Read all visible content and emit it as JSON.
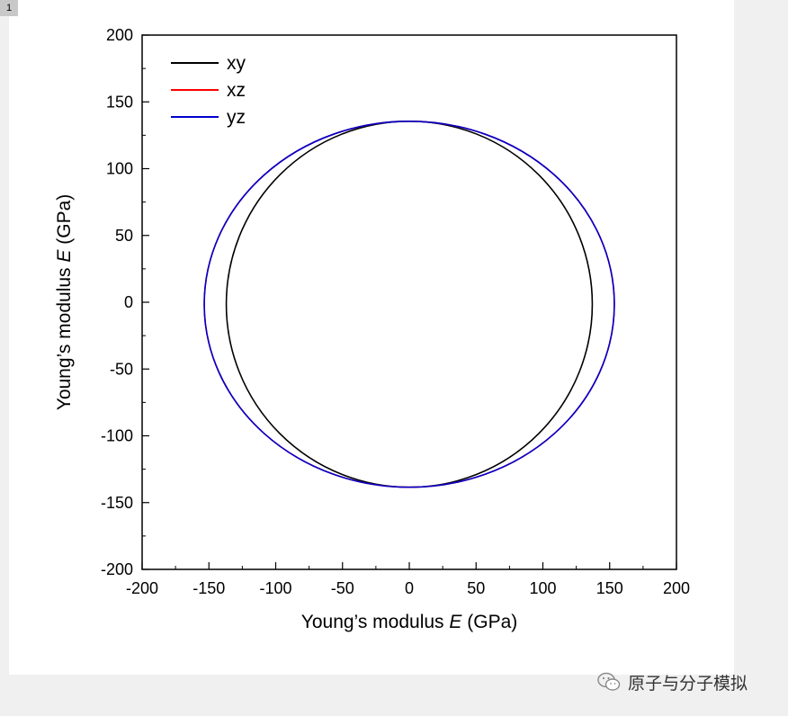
{
  "page": {
    "tab_label": "1",
    "watermark": "原子与分子模拟"
  },
  "chart_data": {
    "type": "line",
    "title": "",
    "xlabel": "Young's modulus E (GPa)",
    "ylabel": "Young's modulus E (GPa)",
    "xlabel_parts": {
      "prefix": "Young’s modulus ",
      "symbol": "E",
      "suffix": " (GPa)"
    },
    "ylabel_parts": {
      "prefix": "Young’s modulus ",
      "symbol": "E",
      "suffix": " (GPa)"
    },
    "xlim": [
      -200,
      200
    ],
    "ylim": [
      -200,
      200
    ],
    "xticks": [
      "-200",
      "-150",
      "-100",
      "-50",
      "0",
      "50",
      "100",
      "150",
      "200"
    ],
    "yticks": [
      "200",
      "150",
      "100",
      "50",
      "0",
      "-50",
      "-100",
      "-150",
      "-200"
    ],
    "grid": false,
    "legend_position": "top-left",
    "plot_kind": "polar",
    "series": [
      {
        "name": "xy",
        "color": "#000000",
        "rx": 137,
        "ry": 137,
        "cx": 0,
        "cy": -1.5
      },
      {
        "name": "xz",
        "color": "#ff0000",
        "rx": 153.5,
        "ry": 137,
        "cx": 0,
        "cy": -1.5
      },
      {
        "name": "yz",
        "color": "#0000cc",
        "rx": 153.5,
        "ry": 137,
        "cx": 0,
        "cy": -1.5
      }
    ]
  }
}
